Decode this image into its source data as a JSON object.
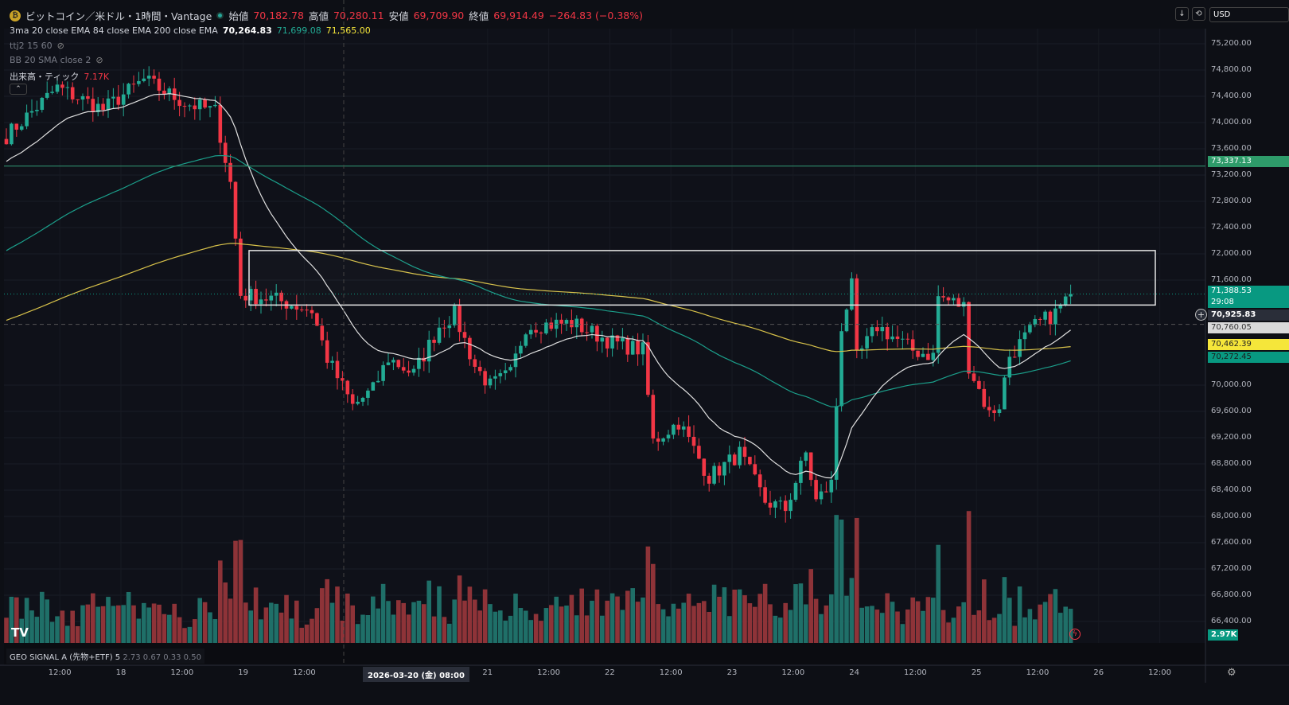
{
  "header": {
    "title": "ビットコイン／米ドル・1時間・Vantage",
    "open_label": "始値",
    "open": "70,182.78",
    "high_label": "高値",
    "high": "70,280.11",
    "low_label": "安値",
    "low": "69,709.90",
    "close_label": "終値",
    "close": "69,914.49",
    "change": "−264.83 (−0.38%)"
  },
  "indicators": {
    "ema_label": "3ma 20 close EMA 84 close EMA 200 close EMA",
    "ema20": "70,264.83",
    "ema84": "71,699.08",
    "ema200": "71,565.00",
    "ttj": "ttj2 15 60",
    "bb": "BB 20 SMA close 2",
    "volume_label": "出来高・ティック",
    "volume": "7.17K"
  },
  "toolbar": {
    "currency": "USD",
    "down_icon": "↓",
    "sync_icon": "⟲"
  },
  "price_axis": [
    "75,200.00",
    "74,800.00",
    "74,400.00",
    "74,000.00",
    "73,600.00",
    "73,200.00",
    "72,800.00",
    "72,400.00",
    "72,000.00",
    "71,600.00",
    "70,000.00",
    "69,600.00",
    "69,200.00",
    "68,800.00",
    "68,400.00",
    "68,000.00",
    "67,600.00",
    "67,200.00",
    "66,800.00",
    "66,400.00"
  ],
  "price_ticks": [
    75200,
    74800,
    74400,
    74000,
    73600,
    73200,
    72800,
    72400,
    72000,
    71600,
    70000,
    69600,
    69200,
    68800,
    68400,
    68000,
    67600,
    67200,
    66800,
    66400
  ],
  "tags": {
    "hline": "73,337.13",
    "last": "71,388.53",
    "countdown": "29:08",
    "crosshair": "70,925.83",
    "ema20": "70,760.05",
    "ema200": "70,462.39",
    "ema84": "70,272.45",
    "vol": "2.97K"
  },
  "time_axis": [
    {
      "t": "12:00",
      "i": -1
    },
    {
      "t": "18",
      "i": 11
    },
    {
      "t": "12:00",
      "i": 23
    },
    {
      "t": "19",
      "i": 35
    },
    {
      "t": "12:00",
      "i": 47
    },
    {
      "t": "21",
      "i": 83
    },
    {
      "t": "12:00",
      "i": 95
    },
    {
      "t": "22",
      "i": 107
    },
    {
      "t": "12:00",
      "i": 119
    },
    {
      "t": "23",
      "i": 131
    },
    {
      "t": "12:00",
      "i": 143
    },
    {
      "t": "24",
      "i": 155
    },
    {
      "t": "12:00",
      "i": 167
    },
    {
      "t": "25",
      "i": 179
    },
    {
      "t": "12:00",
      "i": 191
    },
    {
      "t": "26",
      "i": 203
    },
    {
      "t": "12:00",
      "i": 215
    }
  ],
  "crosshair_time": "2026-03-20 (金)  08:00",
  "geo_signal": "GEO SIGNAL A (先物+ETF) 5",
  "geo_values": "2.73  0.67  0.33  0.50",
  "colors": {
    "up": "#22ab94",
    "down": "#f23645",
    "vol_up": "#1f6f68",
    "vol_down": "#8e3338",
    "ema20": "#e0e0e0",
    "ema84": "#1b9e8a",
    "ema200": "#d8c24a",
    "hline": "#2e8c6a"
  },
  "chart_data": {
    "type": "candlestick",
    "levels": {
      "hline": 73337.13,
      "box_top": 72050,
      "box_bottom": 71220,
      "last": 71388.53,
      "crosshair": 70925.83
    },
    "ema_seed": {
      "ema20": 73380,
      "ema84": 72010,
      "ema200": 70960
    },
    "close_waypoints": [
      [
        0,
        73800
      ],
      [
        10,
        74530
      ],
      [
        19,
        74200
      ],
      [
        27,
        74650
      ],
      [
        35,
        74300
      ],
      [
        41,
        74170
      ],
      [
        44,
        73080
      ],
      [
        46,
        71380
      ],
      [
        52,
        71320
      ],
      [
        60,
        71140
      ],
      [
        63,
        70410
      ],
      [
        68,
        69680
      ],
      [
        72,
        69930
      ],
      [
        75,
        70410
      ],
      [
        80,
        70170
      ],
      [
        85,
        70900
      ],
      [
        88,
        71080
      ],
      [
        92,
        70290
      ],
      [
        95,
        69990
      ],
      [
        99,
        70170
      ],
      [
        102,
        70900
      ],
      [
        111,
        70950
      ],
      [
        119,
        70650
      ],
      [
        125,
        70530
      ],
      [
        127,
        69140
      ],
      [
        132,
        69440
      ],
      [
        138,
        68600
      ],
      [
        144,
        68960
      ],
      [
        149,
        68230
      ],
      [
        153,
        68110
      ],
      [
        157,
        68960
      ],
      [
        159,
        68230
      ],
      [
        162,
        68500
      ],
      [
        164,
        70900
      ],
      [
        166,
        71500
      ],
      [
        167,
        70400
      ],
      [
        171,
        70900
      ],
      [
        178,
        70530
      ],
      [
        182,
        70450
      ],
      [
        183,
        71350
      ],
      [
        188,
        71200
      ],
      [
        189,
        70300
      ],
      [
        193,
        69560
      ],
      [
        195,
        69700
      ],
      [
        197,
        70450
      ],
      [
        202,
        70900
      ],
      [
        206,
        71100
      ],
      [
        209,
        71388.53
      ]
    ]
  }
}
